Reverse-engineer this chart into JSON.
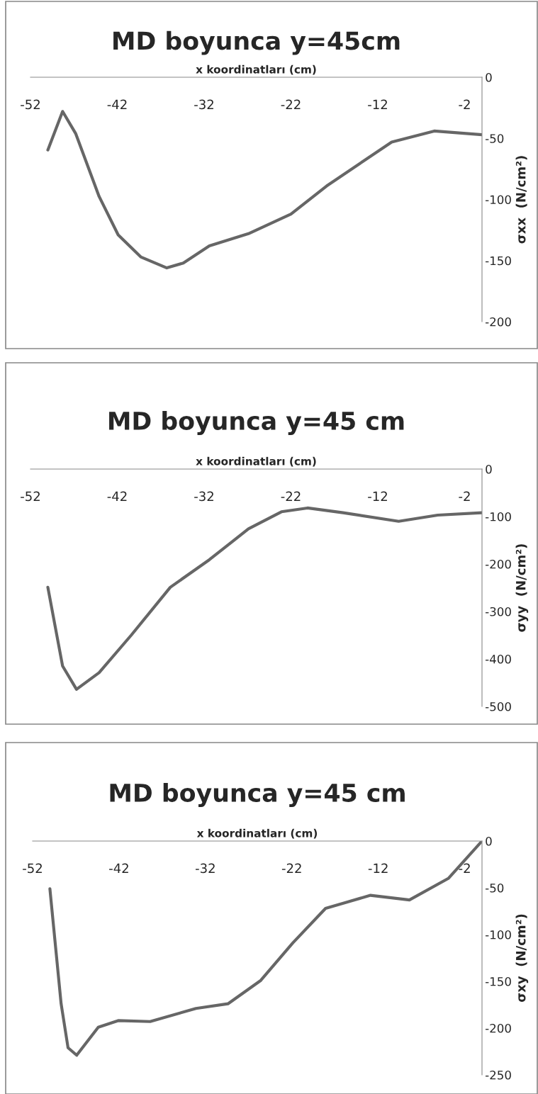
{
  "chart_data": [
    {
      "type": "line",
      "title": "MD boyunca y=45cm",
      "xlabel": "x koordinatları (cm)",
      "ylabel": "σxx  (N/cm²)",
      "x": [
        -50.0,
        -48.3,
        -46.8,
        -44.1,
        -41.9,
        -39.3,
        -36.3,
        -34.4,
        -31.4,
        -26.9,
        -22.0,
        -17.9,
        -10.4,
        -5.5,
        0
      ],
      "series": [
        {
          "color": "#666666",
          "values": [
            -59.5,
            -28,
            -46,
            -97.5,
            -129,
            -147,
            -156,
            -152,
            -138,
            -128,
            -112,
            -89,
            -53,
            -44,
            -47
          ]
        }
      ],
      "xlim": [
        -52,
        0
      ],
      "xticks": [
        -52,
        -42,
        -32,
        -22,
        -12,
        -2
      ],
      "ylim": [
        -200,
        0
      ],
      "yticks": [
        0,
        -50,
        -100,
        -150,
        -200
      ],
      "marker": "none",
      "line_style": "solid"
    },
    {
      "type": "line",
      "title": "MD boyunca y=45 cm",
      "xlabel": "x koordinatları (cm)",
      "ylabel": "σyy  (N/cm²)",
      "x": [
        -50.0,
        -48.3,
        -46.7,
        -44.1,
        -40.4,
        -35.9,
        -31.4,
        -26.9,
        -23.1,
        -20.1,
        -16.0,
        -9.6,
        -5.1,
        0
      ],
      "series": [
        {
          "color": "#666666",
          "values": [
            -249,
            -415,
            -464,
            -429,
            -350,
            -249,
            -191,
            -126,
            -90,
            -82,
            -92,
            -110,
            -97,
            -92
          ]
        }
      ],
      "xlim": [
        -52,
        0
      ],
      "xticks": [
        -52,
        -42,
        -32,
        -22,
        -12,
        -2
      ],
      "ylim": [
        -500,
        0
      ],
      "yticks": [
        0,
        -100,
        -200,
        -300,
        -400,
        -500
      ],
      "marker": "none",
      "line_style": "solid"
    },
    {
      "type": "line",
      "title": "MD boyunca y=45 cm",
      "xlabel": "x koordinatları (cm)",
      "ylabel": "σxy  (N/cm²)",
      "x": [
        -50.0,
        -48.7,
        -47.9,
        -46.9,
        -44.4,
        -42.1,
        -38.4,
        -33.1,
        -29.4,
        -25.6,
        -21.9,
        -18.1,
        -12.9,
        -8.4,
        -3.9,
        0
      ],
      "series": [
        {
          "color": "#666666",
          "values": [
            -51,
            -174,
            -221,
            -229,
            -199,
            -192,
            -193,
            -179,
            -174,
            -149,
            -109,
            -72,
            -58,
            -63,
            -40,
            0
          ]
        }
      ],
      "xlim": [
        -52,
        0
      ],
      "xticks": [
        -52,
        -42,
        -32,
        -22,
        -12,
        -2
      ],
      "ylim": [
        -250,
        0
      ],
      "yticks": [
        0,
        -50,
        -100,
        -150,
        -200,
        -250
      ],
      "marker": "none",
      "line_style": "solid"
    }
  ]
}
